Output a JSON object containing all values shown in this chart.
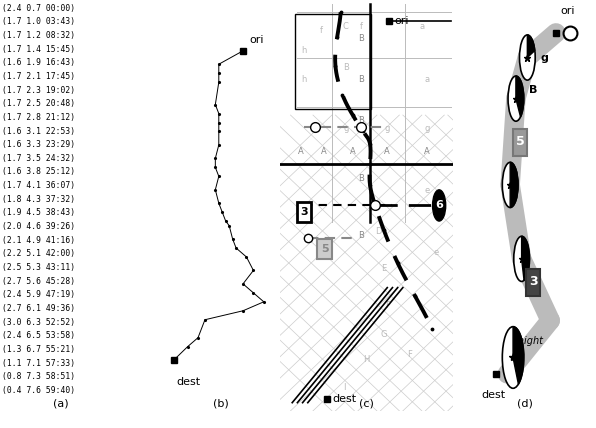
{
  "background_color": "#ffffff",
  "data_points": [
    [
      2.4,
      0.7,
      "00:00"
    ],
    [
      1.7,
      1.0,
      "03:43"
    ],
    [
      1.7,
      1.2,
      "08:32"
    ],
    [
      1.7,
      1.4,
      "15:45"
    ],
    [
      1.6,
      1.9,
      "16:43"
    ],
    [
      1.7,
      2.1,
      "17:45"
    ],
    [
      1.7,
      2.3,
      "19:02"
    ],
    [
      1.7,
      2.5,
      "20:48"
    ],
    [
      1.7,
      2.8,
      "21:12"
    ],
    [
      1.6,
      3.1,
      "22:53"
    ],
    [
      1.6,
      3.3,
      "23:29"
    ],
    [
      1.7,
      3.5,
      "24:32"
    ],
    [
      1.6,
      3.8,
      "25:12"
    ],
    [
      1.7,
      4.1,
      "36:07"
    ],
    [
      1.8,
      4.3,
      "37:32"
    ],
    [
      1.9,
      4.5,
      "38:43"
    ],
    [
      2.0,
      4.6,
      "39:26"
    ],
    [
      2.1,
      4.9,
      "41:16"
    ],
    [
      2.2,
      5.1,
      "42:00"
    ],
    [
      2.5,
      5.3,
      "43:11"
    ],
    [
      2.7,
      5.6,
      "45:28"
    ],
    [
      2.4,
      5.9,
      "47:19"
    ],
    [
      2.7,
      6.1,
      "49:36"
    ],
    [
      3.0,
      6.3,
      "52:52"
    ],
    [
      2.4,
      6.5,
      "53:58"
    ],
    [
      1.3,
      6.7,
      "55:21"
    ],
    [
      1.1,
      7.1,
      "57:33"
    ],
    [
      0.8,
      7.3,
      "58:51"
    ],
    [
      0.4,
      7.6,
      "59:40"
    ]
  ]
}
